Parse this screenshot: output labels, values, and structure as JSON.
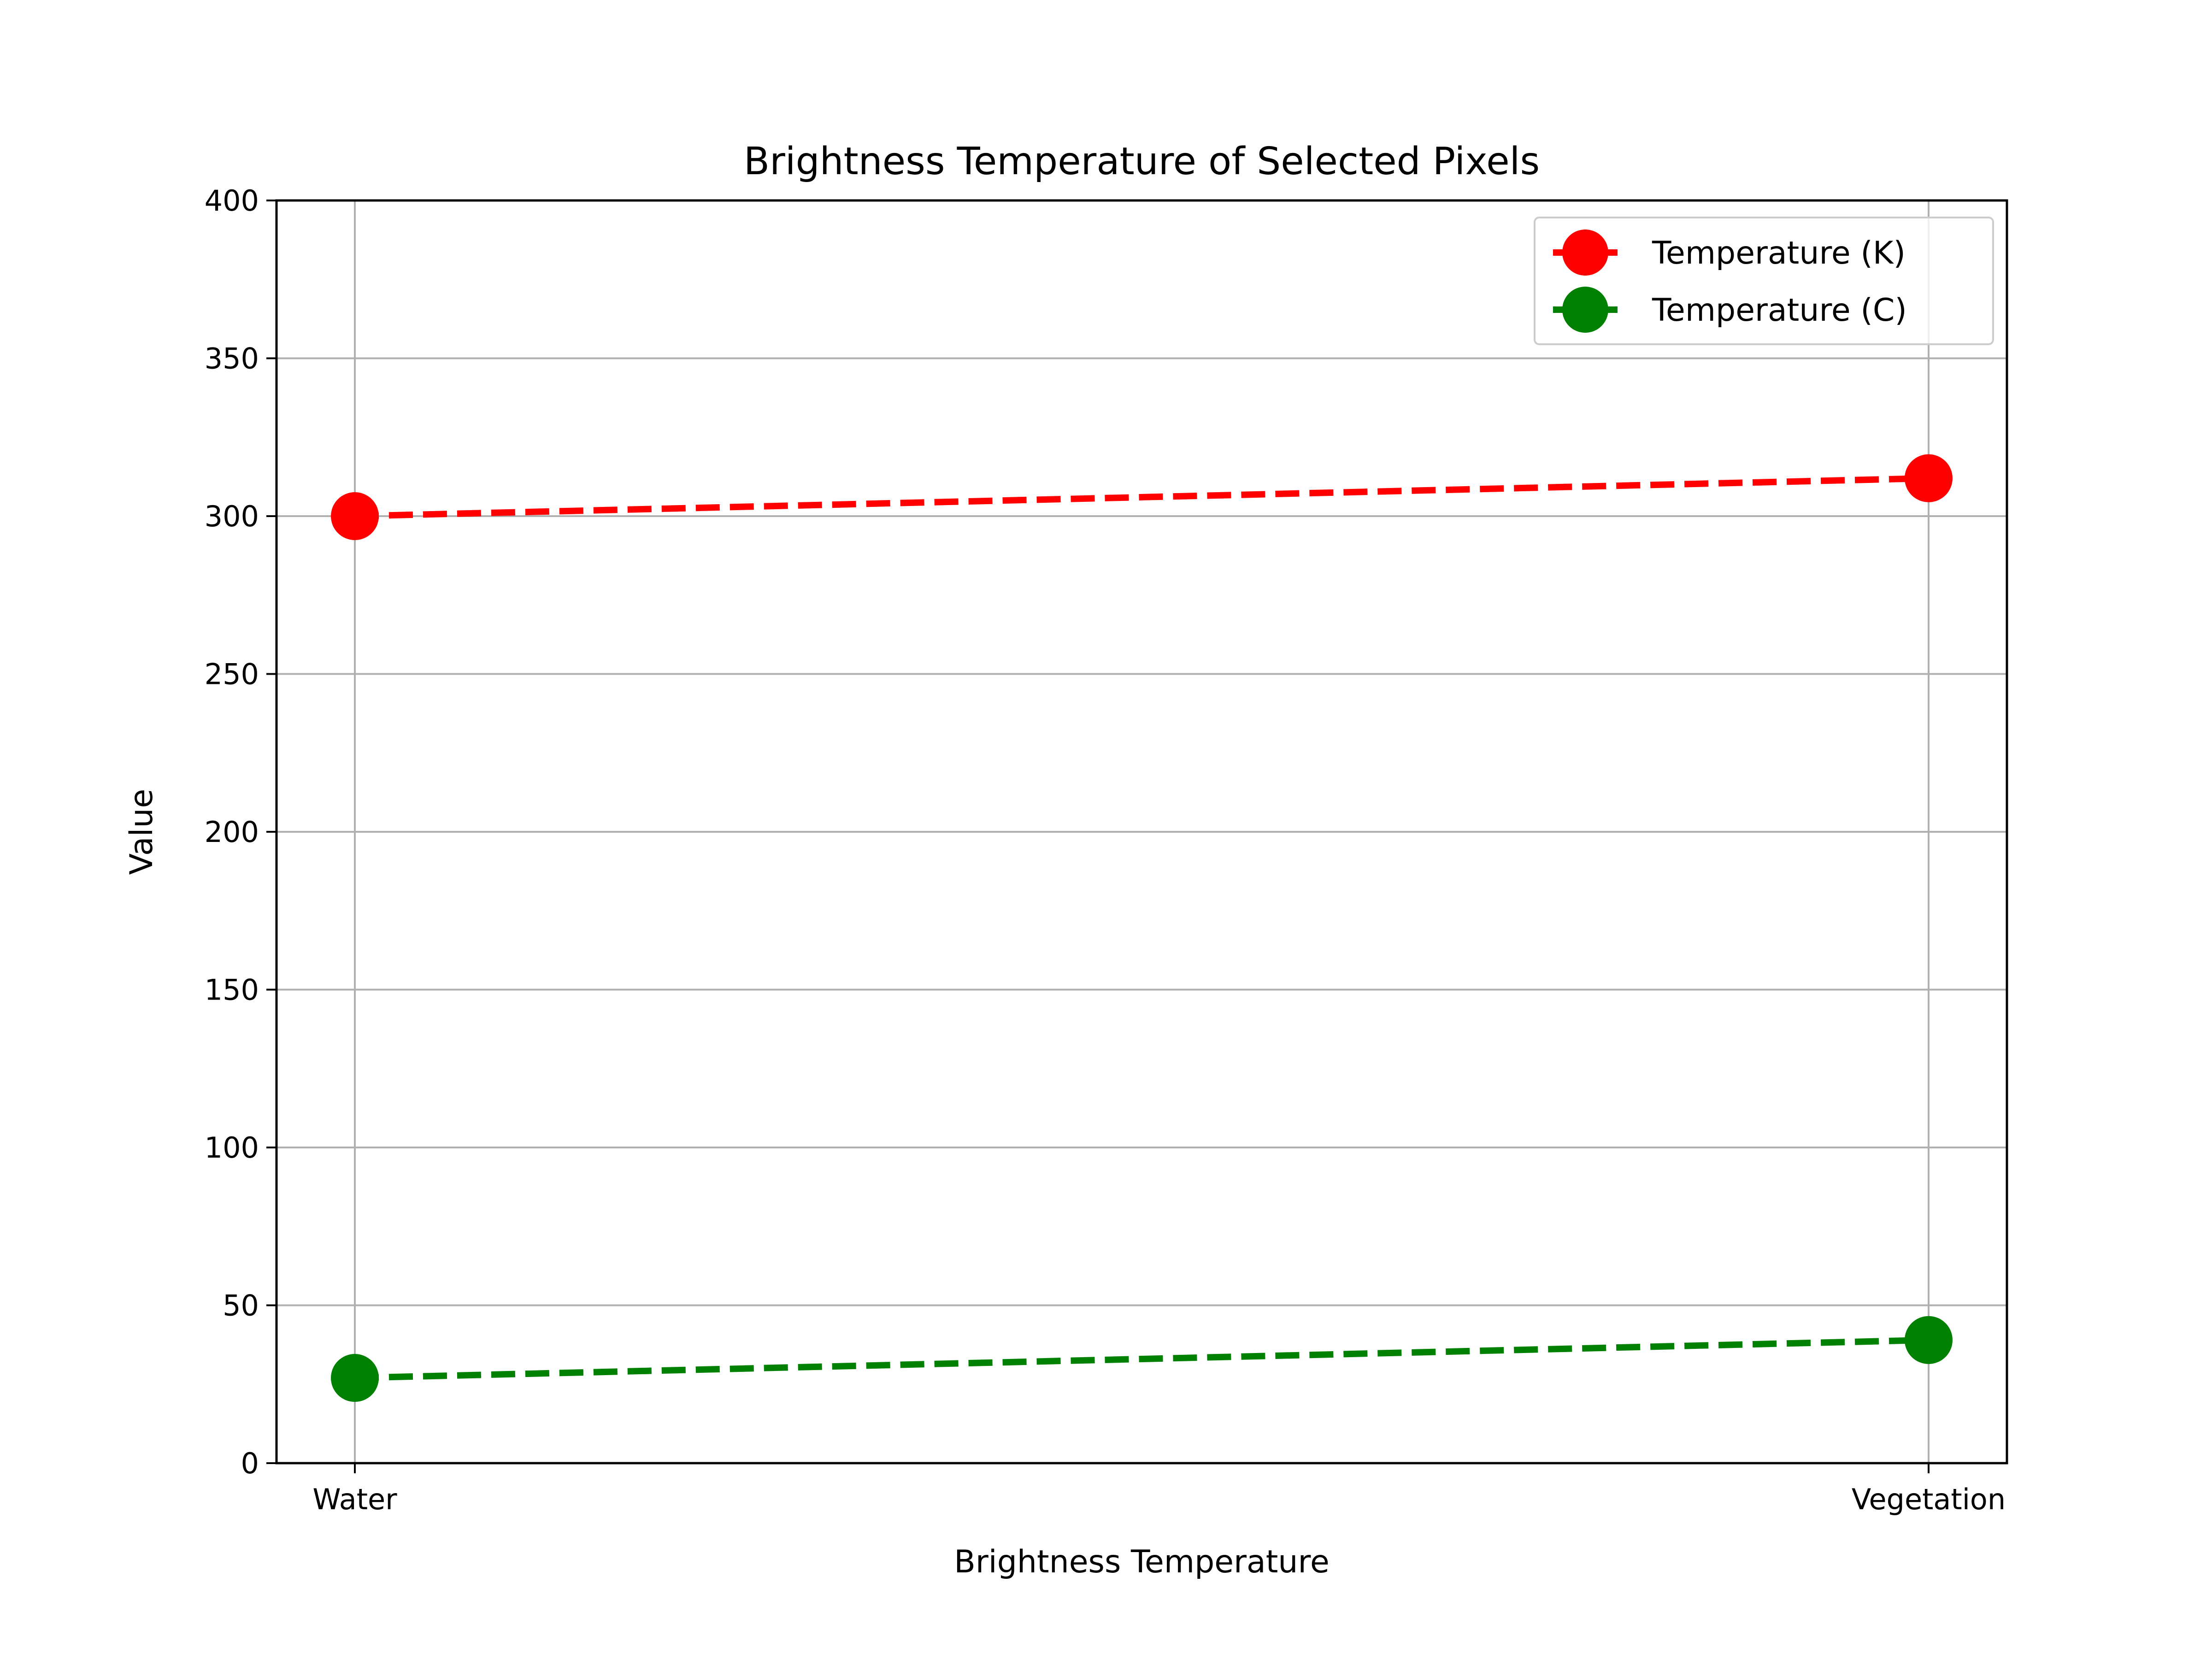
{
  "chart_data": {
    "type": "line",
    "title": "Brightness Temperature of Selected Pixels",
    "xlabel": "Brightness Temperature",
    "ylabel": "Value",
    "categories": [
      "Water",
      "Vegetation"
    ],
    "ylim": [
      0,
      400
    ],
    "yticks": [
      0,
      50,
      100,
      150,
      200,
      250,
      300,
      350,
      400
    ],
    "ytick_labels": [
      "0",
      "50",
      "100",
      "150",
      "200",
      "250",
      "300",
      "350",
      "400"
    ],
    "grid": true,
    "legend_position": "top-right",
    "series": [
      {
        "name": "Temperature (K)",
        "values": [
          300,
          312
        ],
        "color": "#ff0000",
        "linestyle": "dashed",
        "marker": "circle"
      },
      {
        "name": "Temperature (C)",
        "values": [
          27,
          39
        ],
        "color": "#008000",
        "linestyle": "dashed",
        "marker": "circle"
      }
    ]
  }
}
